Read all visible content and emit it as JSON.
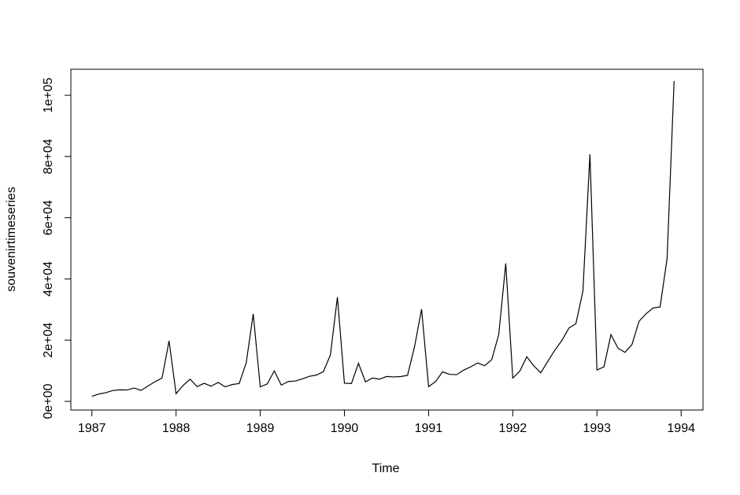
{
  "chart_data": {
    "type": "line",
    "x_label": "Time",
    "y_label": "souvenirtimeseries",
    "color": "#000000",
    "x": [
      1987,
      1987.0833,
      1987.1667,
      1987.25,
      1987.3333,
      1987.4167,
      1987.5,
      1987.5833,
      1987.6667,
      1987.75,
      1987.8333,
      1987.9167,
      1988,
      1988.0833,
      1988.1667,
      1988.25,
      1988.3333,
      1988.4167,
      1988.5,
      1988.5833,
      1988.6667,
      1988.75,
      1988.8333,
      1988.9167,
      1989,
      1989.0833,
      1989.1667,
      1989.25,
      1989.3333,
      1989.4167,
      1989.5,
      1989.5833,
      1989.6667,
      1989.75,
      1989.8333,
      1989.9167,
      1990,
      1990.0833,
      1990.1667,
      1990.25,
      1990.3333,
      1990.4167,
      1990.5,
      1990.5833,
      1990.6667,
      1990.75,
      1990.8333,
      1990.9167,
      1991,
      1991.0833,
      1991.1667,
      1991.25,
      1991.3333,
      1991.4167,
      1991.5,
      1991.5833,
      1991.6667,
      1991.75,
      1991.8333,
      1991.9167,
      1992,
      1992.0833,
      1992.1667,
      1992.25,
      1992.3333,
      1992.4167,
      1992.5,
      1992.5833,
      1992.6667,
      1992.75,
      1992.8333,
      1992.9167,
      1993,
      1993.0833,
      1993.1667,
      1993.25,
      1993.3333,
      1993.4167,
      1993.5,
      1993.5833,
      1993.6667,
      1993.75,
      1993.8333,
      1993.9167
    ],
    "values": [
      1664.81,
      2397.53,
      2840.71,
      3547.29,
      3752.96,
      3714.74,
      4349.61,
      3566.34,
      5021.82,
      6423.48,
      7600.6,
      19756.21,
      2499.81,
      5198.24,
      7225.14,
      4806.03,
      5900.88,
      4951.34,
      6179.12,
      4752.15,
      5496.43,
      5835.1,
      12600.08,
      28541.72,
      4717.02,
      5702.63,
      9957.58,
      5304.78,
      6492.43,
      6630.8,
      7349.62,
      8176.62,
      8573.17,
      9690.5,
      15151.84,
      34061.01,
      5921.1,
      5814.58,
      12421.25,
      6369.77,
      7609.12,
      7224.75,
      8121.22,
      7979.25,
      8093.06,
      8476.7,
      17914.66,
      30114.41,
      4826.64,
      6470.23,
      9638.77,
      8821.17,
      8722.37,
      10209.48,
      11276.55,
      12552.22,
      11637.39,
      13606.89,
      21822.11,
      45060.69,
      7615.03,
      9849.69,
      14558.4,
      11587.33,
      9332.56,
      13082.09,
      16732.78,
      19888.61,
      23933.38,
      25391.35,
      36024.8,
      80721.71,
      10243.24,
      11266.88,
      21826.84,
      17357.33,
      15997.79,
      18601.53,
      26155.15,
      28586.52,
      30505.41,
      30821.33,
      46634.38,
      104660.67
    ],
    "xlim": [
      1986.75,
      1994.26
    ],
    "ylim": [
      -2830,
      108500
    ],
    "xticks": [
      1987,
      1988,
      1989,
      1990,
      1991,
      1992,
      1993,
      1994
    ],
    "yticks": [
      {
        "value": 0,
        "label": "0e+00"
      },
      {
        "value": 20000,
        "label": "2e+04"
      },
      {
        "value": 40000,
        "label": "4e+04"
      },
      {
        "value": 60000,
        "label": "6e+04"
      },
      {
        "value": 80000,
        "label": "8e+04"
      },
      {
        "value": 100000,
        "label": "1e+05"
      }
    ],
    "grid": false
  }
}
